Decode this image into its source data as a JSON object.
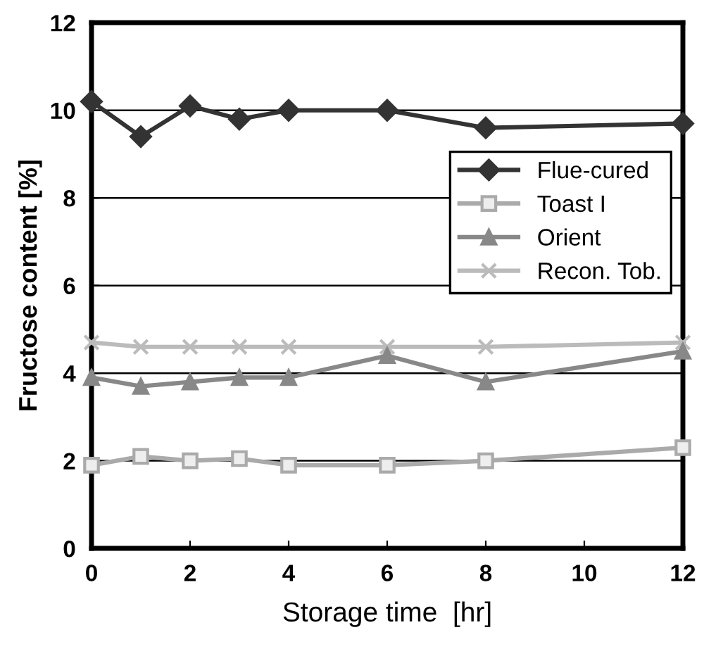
{
  "chart_data": {
    "type": "line",
    "xlabel": "Storage time  [hr]",
    "ylabel": "Fructose content [%]",
    "x": [
      0,
      1,
      2,
      3,
      4,
      6,
      8,
      12
    ],
    "xlim": [
      0,
      12
    ],
    "xticks": [
      0,
      2,
      4,
      6,
      8,
      10,
      12
    ],
    "ylim": [
      0,
      12
    ],
    "yticks": [
      0,
      2,
      4,
      6,
      8,
      10,
      12
    ],
    "grid": "y",
    "legend": "right",
    "series": [
      {
        "name": "Flue-cured",
        "color": "#333333",
        "marker": "diamond",
        "values": [
          10.2,
          9.4,
          10.1,
          9.8,
          10.0,
          10.0,
          9.6,
          9.7
        ]
      },
      {
        "name": "Toast I",
        "color": "#aaaaaa",
        "marker": "square",
        "values": [
          1.9,
          2.1,
          2.0,
          2.05,
          1.9,
          1.9,
          2.0,
          2.3
        ]
      },
      {
        "name": "Orient",
        "color": "#888888",
        "marker": "triangle",
        "values": [
          3.9,
          3.7,
          3.8,
          3.9,
          3.9,
          4.4,
          3.8,
          4.5
        ]
      },
      {
        "name": "Recon. Tob.",
        "color": "#bbbbbb",
        "marker": "cross",
        "values": [
          4.7,
          4.6,
          4.6,
          4.6,
          4.6,
          4.6,
          4.6,
          4.7
        ]
      }
    ]
  }
}
